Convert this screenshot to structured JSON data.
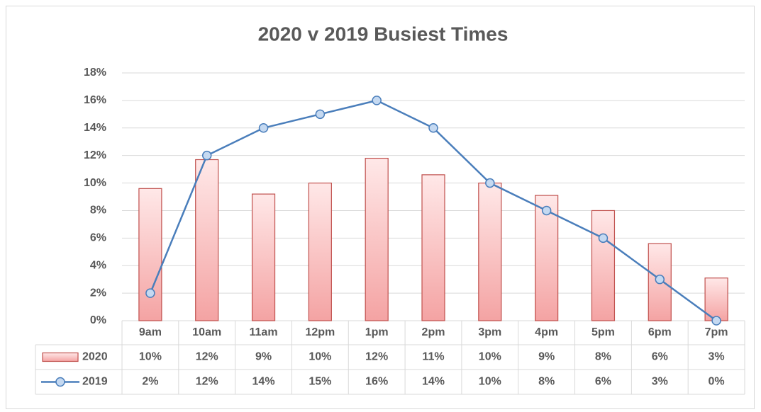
{
  "chart_data": {
    "type": "bar-line",
    "title": "2020 v 2019 Busiest Times",
    "categories": [
      "9am",
      "10am",
      "11am",
      "12pm",
      "1pm",
      "2pm",
      "3pm",
      "4pm",
      "5pm",
      "6pm",
      "7pm"
    ],
    "series": [
      {
        "name": "2020",
        "type": "bar",
        "color": "#c0504d",
        "values": [
          9.6,
          11.7,
          9.2,
          10.0,
          11.8,
          10.6,
          10.0,
          9.1,
          8.0,
          5.6,
          3.1
        ],
        "value_labels": [
          "10%",
          "12%",
          "9%",
          "10%",
          "12%",
          "11%",
          "10%",
          "9%",
          "8%",
          "6%",
          "3%"
        ]
      },
      {
        "name": "2019",
        "type": "line",
        "color": "#4a7ebb",
        "values": [
          2,
          12,
          14,
          15,
          16,
          14,
          10,
          8,
          6,
          3,
          0
        ],
        "value_labels": [
          "2%",
          "12%",
          "14%",
          "15%",
          "16%",
          "14%",
          "10%",
          "8%",
          "6%",
          "3%",
          "0%"
        ]
      }
    ],
    "ylim": [
      0,
      18
    ],
    "yticks": [
      {
        "value": 0,
        "label": "0%"
      },
      {
        "value": 2,
        "label": "2%"
      },
      {
        "value": 4,
        "label": "4%"
      },
      {
        "value": 6,
        "label": "6%"
      },
      {
        "value": 8,
        "label": "8%"
      },
      {
        "value": 10,
        "label": "10%"
      },
      {
        "value": 12,
        "label": "12%"
      },
      {
        "value": 14,
        "label": "14%"
      },
      {
        "value": 16,
        "label": "16%"
      },
      {
        "value": 18,
        "label": "18%"
      }
    ],
    "grid": true,
    "legend": "data-table"
  }
}
